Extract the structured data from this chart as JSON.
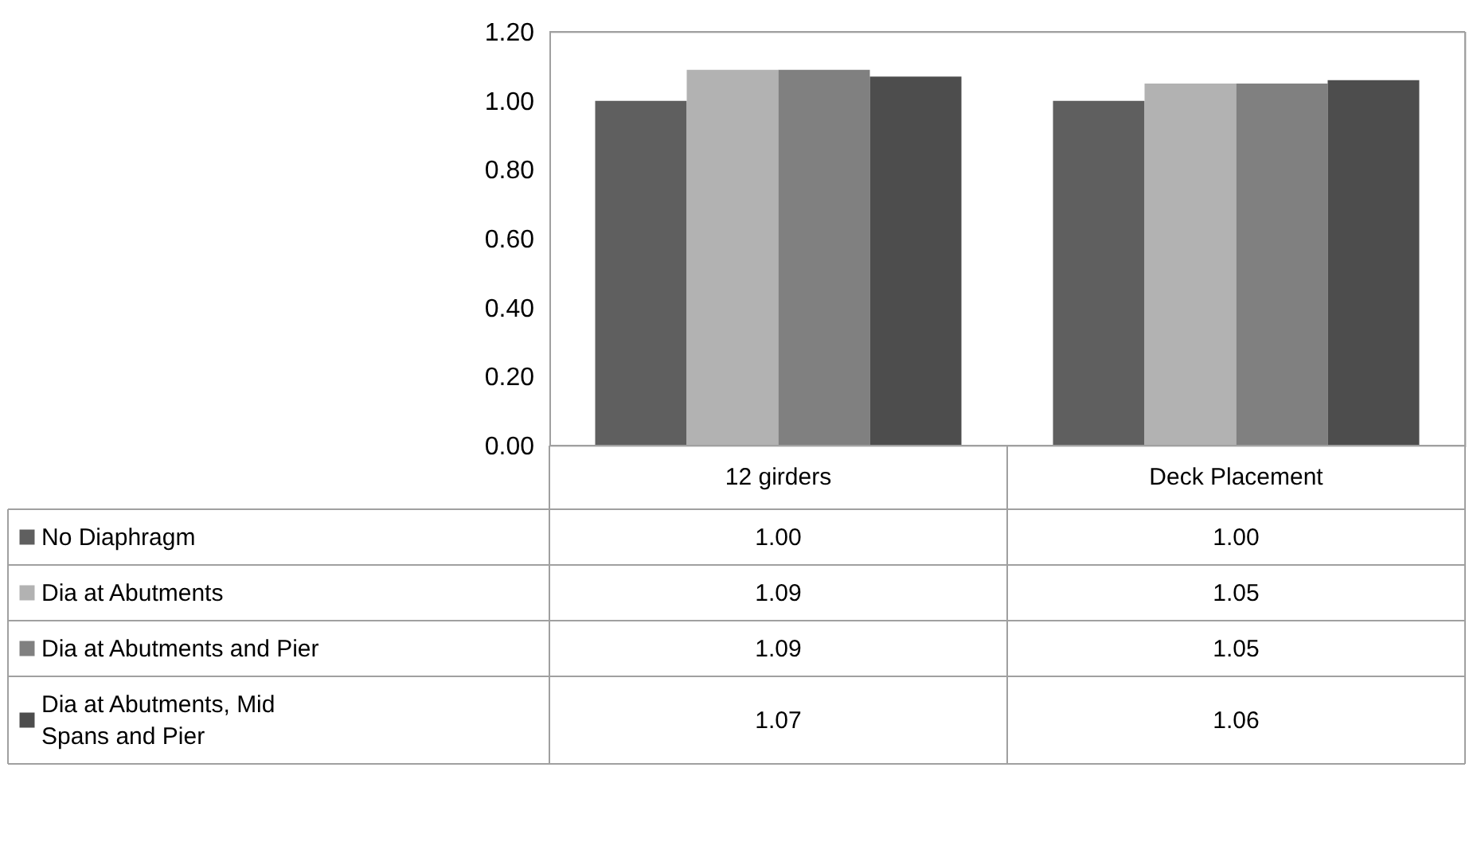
{
  "chart_data": {
    "type": "bar",
    "categories": [
      "12 girders",
      "Deck Placement"
    ],
    "series": [
      {
        "name": "No Diaphragm",
        "color": "#5f5f5f",
        "values": [
          1.0,
          1.0
        ],
        "value_labels": [
          "1.00",
          "1.00"
        ]
      },
      {
        "name": "Dia at Abutments",
        "color": "#b2b2b2",
        "values": [
          1.09,
          1.05
        ],
        "value_labels": [
          "1.09",
          "1.05"
        ]
      },
      {
        "name": "Dia at Abutments and Pier",
        "color": "#808080",
        "values": [
          1.09,
          1.05
        ],
        "value_labels": [
          "1.09",
          "1.05"
        ]
      },
      {
        "name": "Dia at Abutments, Mid Spans and Pier",
        "color": "#4d4d4d",
        "values": [
          1.07,
          1.06
        ],
        "value_labels": [
          "1.07",
          "1.06"
        ]
      }
    ],
    "ylim": [
      0,
      1.2
    ],
    "yticks": [
      {
        "value": 0,
        "label": "0.00"
      },
      {
        "value": 0.2,
        "label": "0.20"
      },
      {
        "value": 0.4,
        "label": "0.40"
      },
      {
        "value": 0.6,
        "label": "0.60"
      },
      {
        "value": 0.8,
        "label": "0.80"
      },
      {
        "value": 1.0,
        "label": "1.00"
      },
      {
        "value": 1.2,
        "label": "1.20"
      }
    ],
    "grid": false,
    "legend": "bottom"
  }
}
